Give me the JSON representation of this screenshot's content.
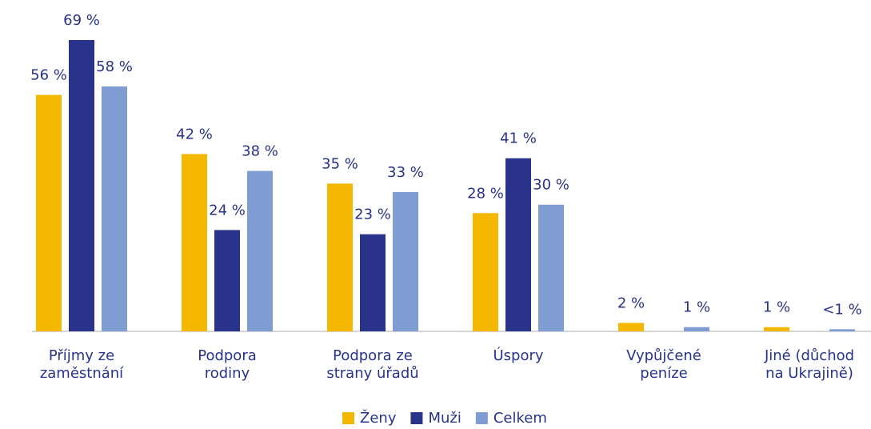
{
  "chart_data": {
    "type": "bar",
    "categories": [
      "Příjmy ze\nzaměstnání",
      "Podpora\nrodiny",
      "Podpora ze\nstrany úřadů",
      "Úspory",
      "Vypůjčené\npeníze",
      "Jiné (důchod\nna Ukrajině)"
    ],
    "series": [
      {
        "name": "Ženy",
        "color": "#f5b800",
        "values": [
          56,
          42,
          35,
          28,
          2,
          1
        ],
        "value_labels": [
          "56 %",
          "42 %",
          "35 %",
          "28 %",
          "2 %",
          "1 %"
        ]
      },
      {
        "name": "Muži",
        "color": "#283389",
        "values": [
          69,
          24,
          23,
          41,
          null,
          null
        ],
        "value_labels": [
          "69 %",
          "24 %",
          "23 %",
          "41 %",
          null,
          null
        ]
      },
      {
        "name": "Celkem",
        "color": "#809dd3",
        "values": [
          58,
          38,
          33,
          30,
          1,
          0.5
        ],
        "value_labels": [
          "58 %",
          "38 %",
          "33 %",
          "30 %",
          "1 %",
          "<1 %"
        ]
      }
    ],
    "ylim": [
      0,
      69
    ],
    "legend": "bottom"
  }
}
